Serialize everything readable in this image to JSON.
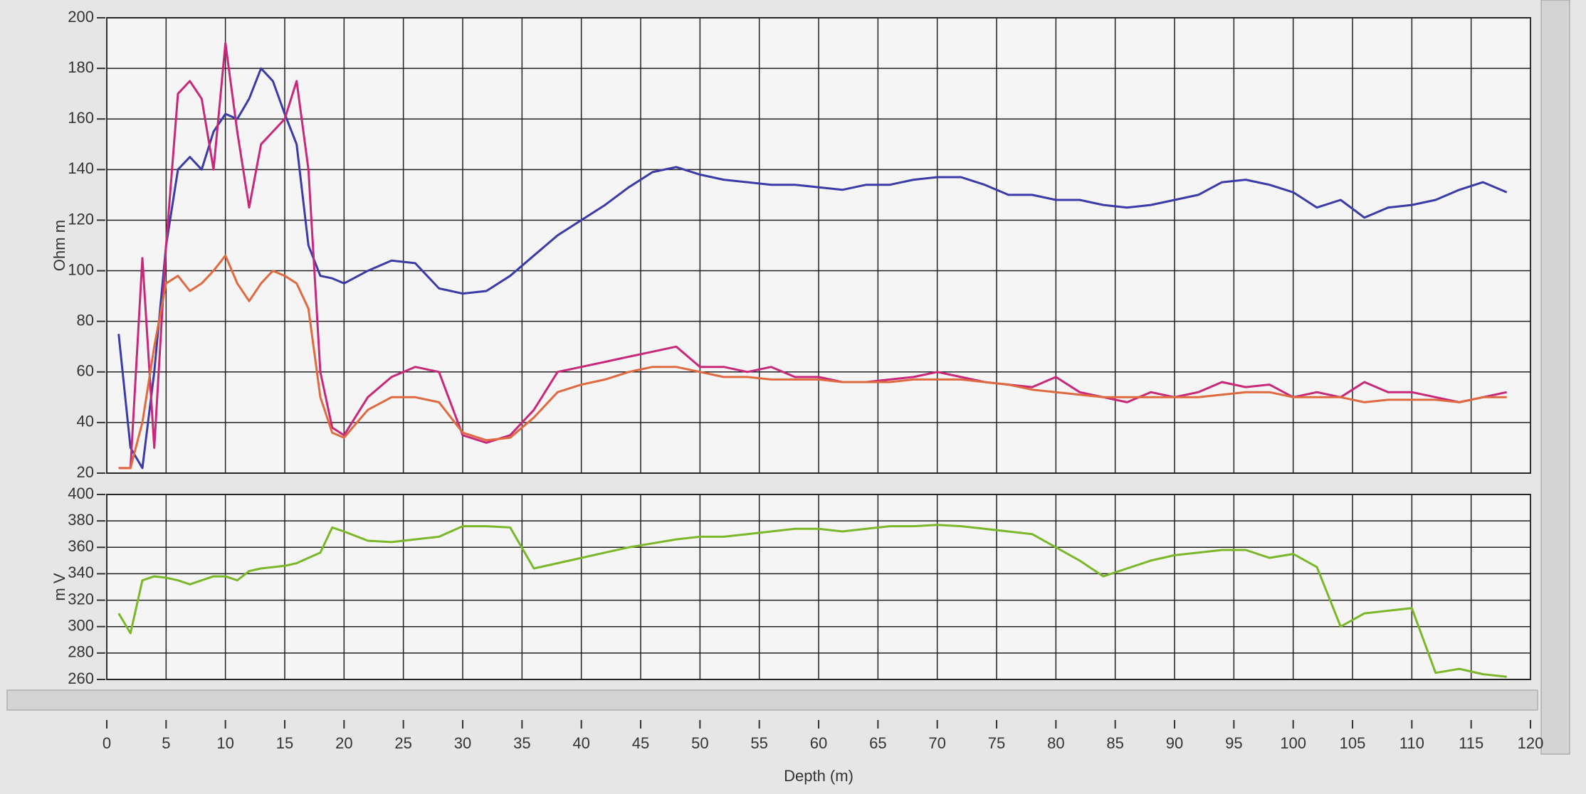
{
  "chart_data": [
    {
      "type": "line",
      "ylabel": "Ohm m",
      "xlim": [
        0,
        120
      ],
      "ylim": [
        20,
        200
      ],
      "yticks": [
        20,
        40,
        60,
        80,
        100,
        120,
        140,
        160,
        180,
        200
      ],
      "grid": true,
      "x": [
        1,
        2,
        3,
        4,
        5,
        6,
        7,
        8,
        9,
        10,
        11,
        12,
        13,
        14,
        15,
        16,
        17,
        18,
        19,
        20,
        22,
        24,
        26,
        28,
        30,
        32,
        34,
        36,
        38,
        40,
        42,
        44,
        46,
        48,
        50,
        52,
        54,
        56,
        58,
        60,
        62,
        64,
        66,
        68,
        70,
        72,
        74,
        76,
        78,
        80,
        82,
        84,
        86,
        88,
        90,
        92,
        94,
        96,
        98,
        100,
        102,
        104,
        106,
        108,
        110,
        112,
        114,
        116,
        118
      ],
      "series": [
        {
          "color": "#3a3aa8",
          "values": [
            75,
            30,
            22,
            60,
            110,
            140,
            145,
            140,
            155,
            162,
            160,
            168,
            180,
            175,
            162,
            150,
            110,
            98,
            97,
            95,
            100,
            104,
            103,
            93,
            91,
            92,
            98,
            106,
            114,
            120,
            126,
            133,
            139,
            141,
            138,
            136,
            135,
            134,
            134,
            133,
            132,
            134,
            134,
            136,
            137,
            137,
            134,
            130,
            130,
            128,
            128,
            126,
            125,
            126,
            128,
            130,
            135,
            136,
            134,
            131,
            125,
            128,
            121,
            125,
            126,
            128,
            132,
            135,
            131
          ]
        },
        {
          "color": "#c8287a",
          "values": [
            22,
            22,
            105,
            30,
            110,
            170,
            175,
            168,
            140,
            190,
            155,
            125,
            150,
            155,
            160,
            175,
            140,
            60,
            38,
            35,
            50,
            58,
            62,
            60,
            35,
            32,
            35,
            45,
            60,
            62,
            64,
            66,
            68,
            70,
            62,
            62,
            60,
            62,
            58,
            58,
            56,
            56,
            57,
            58,
            60,
            58,
            56,
            55,
            54,
            58,
            52,
            50,
            48,
            52,
            50,
            52,
            56,
            54,
            55,
            50,
            52,
            50,
            56,
            52,
            52,
            50,
            48,
            50,
            52
          ]
        },
        {
          "color": "#e06a40",
          "values": [
            22,
            22,
            40,
            70,
            95,
            98,
            92,
            95,
            100,
            106,
            95,
            88,
            95,
            100,
            98,
            95,
            85,
            50,
            36,
            34,
            45,
            50,
            50,
            48,
            36,
            33,
            34,
            42,
            52,
            55,
            57,
            60,
            62,
            62,
            60,
            58,
            58,
            57,
            57,
            57,
            56,
            56,
            56,
            57,
            57,
            57,
            56,
            55,
            53,
            52,
            51,
            50,
            50,
            50,
            50,
            50,
            51,
            52,
            52,
            50,
            50,
            50,
            48,
            49,
            49,
            49,
            48,
            50,
            50
          ]
        }
      ]
    },
    {
      "type": "line",
      "ylabel": "m V",
      "xlabel": "Depth (m)",
      "xlim": [
        0,
        120
      ],
      "xticks": [
        0,
        5,
        10,
        15,
        20,
        25,
        30,
        35,
        40,
        45,
        50,
        55,
        60,
        65,
        70,
        75,
        80,
        85,
        90,
        95,
        100,
        105,
        110,
        115,
        120
      ],
      "ylim": [
        260,
        400
      ],
      "yticks": [
        260,
        280,
        300,
        320,
        340,
        360,
        380,
        400
      ],
      "grid": true,
      "x": [
        1,
        2,
        3,
        4,
        5,
        6,
        7,
        8,
        9,
        10,
        11,
        12,
        13,
        14,
        15,
        16,
        17,
        18,
        19,
        20,
        22,
        24,
        26,
        28,
        30,
        32,
        34,
        36,
        38,
        40,
        42,
        44,
        46,
        48,
        50,
        52,
        54,
        56,
        58,
        60,
        62,
        64,
        66,
        68,
        70,
        72,
        74,
        76,
        78,
        80,
        82,
        84,
        86,
        88,
        90,
        92,
        94,
        96,
        98,
        100,
        102,
        104,
        106,
        108,
        110,
        112,
        114,
        116,
        118
      ],
      "series": [
        {
          "color": "#7ab82a",
          "values": [
            310,
            295,
            335,
            338,
            337,
            335,
            332,
            335,
            338,
            338,
            335,
            342,
            344,
            345,
            346,
            348,
            352,
            356,
            375,
            372,
            365,
            364,
            366,
            368,
            376,
            376,
            375,
            344,
            348,
            352,
            356,
            360,
            363,
            366,
            368,
            368,
            370,
            372,
            374,
            374,
            372,
            374,
            376,
            376,
            377,
            376,
            374,
            372,
            370,
            360,
            350,
            338,
            344,
            350,
            354,
            356,
            358,
            358,
            352,
            355,
            345,
            300,
            310,
            312,
            314,
            265,
            268,
            264,
            262
          ]
        }
      ]
    }
  ]
}
